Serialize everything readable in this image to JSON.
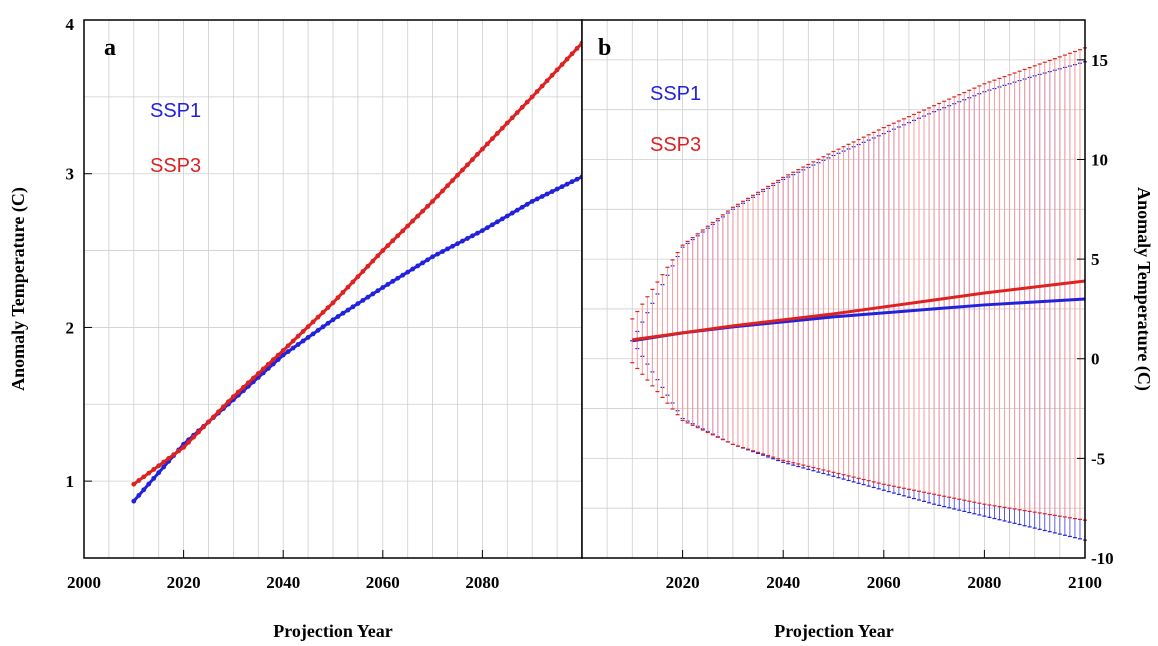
{
  "colors": {
    "ssp1": "#2222dd",
    "ssp3": "#dd2222",
    "band": "#f4a6a6",
    "grid": "#cfcfcf"
  },
  "chart_data": [
    {
      "type": "line",
      "panel_label": "a",
      "xlabel": "Projection Year",
      "ylabel": "Anomaly Temperature (C)",
      "xlim": [
        2000,
        2100
      ],
      "ylim": [
        0.5,
        4
      ],
      "x_ticks": [
        2000,
        2020,
        2040,
        2060,
        2080
      ],
      "y_ticks": [
        1,
        2,
        3,
        4
      ],
      "grid": true,
      "legend": [
        "SSP1",
        "SSP3"
      ],
      "x": [
        2010,
        2020,
        2030,
        2040,
        2050,
        2060,
        2070,
        2080,
        2090,
        2100
      ],
      "series": [
        {
          "name": "SSP1",
          "values": [
            0.87,
            1.24,
            1.53,
            1.82,
            2.05,
            2.26,
            2.46,
            2.63,
            2.82,
            2.98
          ]
        },
        {
          "name": "SSP3",
          "values": [
            0.98,
            1.22,
            1.55,
            1.85,
            2.16,
            2.5,
            2.82,
            3.16,
            3.5,
            3.85
          ]
        }
      ]
    },
    {
      "type": "line",
      "panel_label": "b",
      "xlabel": "Projection Year",
      "ylabel": "Anomaly Temperature (C)",
      "xlim": [
        2000,
        2100
      ],
      "ylim": [
        -10,
        17
      ],
      "x_ticks": [
        2020,
        2040,
        2060,
        2080,
        2100
      ],
      "y_ticks": [
        -10,
        -5,
        0,
        5,
        10,
        15
      ],
      "grid": true,
      "legend": [
        "SSP1",
        "SSP3"
      ],
      "x": [
        2010,
        2020,
        2030,
        2040,
        2050,
        2060,
        2070,
        2080,
        2090,
        2100
      ],
      "series": [
        {
          "name": "SSP1",
          "values": [
            0.9,
            1.3,
            1.6,
            1.85,
            2.1,
            2.3,
            2.5,
            2.7,
            2.85,
            3.0
          ],
          "upper": [
            0.9,
            5.6,
            7.5,
            9.0,
            10.2,
            11.3,
            12.4,
            13.4,
            14.2,
            14.9
          ],
          "lower": [
            0.9,
            -3.0,
            -4.3,
            -5.2,
            -5.9,
            -6.6,
            -7.3,
            -7.9,
            -8.5,
            -9.1
          ]
        },
        {
          "name": "SSP3",
          "values": [
            0.95,
            1.3,
            1.65,
            1.95,
            2.25,
            2.6,
            2.95,
            3.3,
            3.6,
            3.9
          ],
          "upper": [
            2.0,
            5.7,
            7.6,
            9.1,
            10.4,
            11.6,
            12.7,
            13.8,
            14.7,
            15.6
          ],
          "lower": [
            -0.2,
            -3.1,
            -4.3,
            -5.1,
            -5.7,
            -6.3,
            -6.8,
            -7.3,
            -7.7,
            -8.1
          ]
        }
      ]
    }
  ]
}
